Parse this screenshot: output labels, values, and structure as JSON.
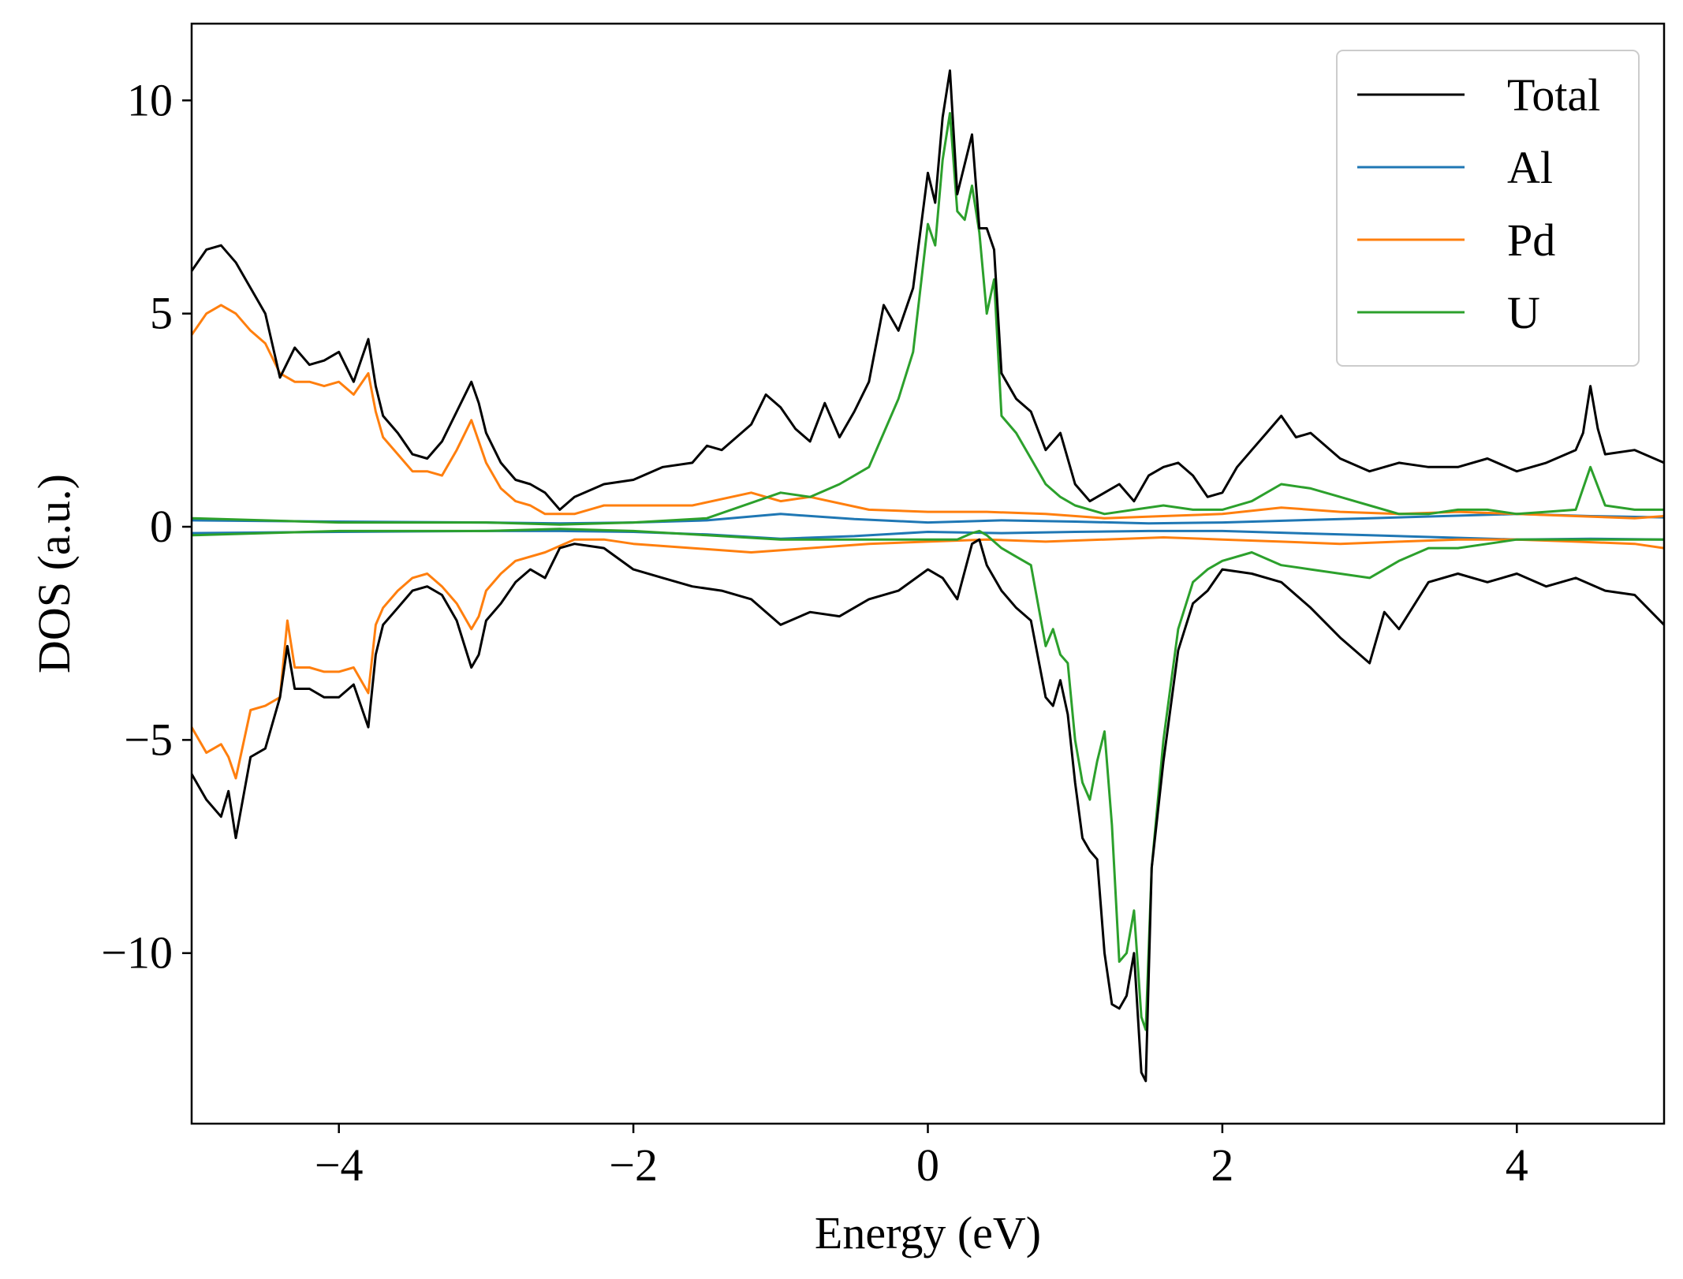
{
  "chart_data": {
    "type": "line",
    "title": "",
    "xlabel": "Energy (eV)",
    "ylabel": "DOS (a.u.)",
    "xlim": [
      -5,
      5
    ],
    "ylim": [
      -14,
      11.8
    ],
    "xticks": [
      -4,
      -2,
      0,
      2,
      4
    ],
    "xtick_labels": [
      "−4",
      "−2",
      "0",
      "2",
      "4"
    ],
    "yticks": [
      10,
      5,
      0,
      -5,
      -10
    ],
    "ytick_labels": [
      "10",
      "5",
      "0",
      "−5",
      "−10"
    ],
    "grid": false,
    "legend_position": "top-right",
    "legend": [
      "Total",
      "Al",
      "Pd",
      "U"
    ],
    "series": [
      {
        "name": "Total",
        "color": "#000000",
        "component": "spin-up",
        "x": [
          -5,
          -4.9,
          -4.8,
          -4.7,
          -4.6,
          -4.5,
          -4.4,
          -4.3,
          -4.2,
          -4.1,
          -4.0,
          -3.9,
          -3.8,
          -3.75,
          -3.7,
          -3.6,
          -3.5,
          -3.4,
          -3.3,
          -3.2,
          -3.1,
          -3.05,
          -3.0,
          -2.9,
          -2.8,
          -2.7,
          -2.6,
          -2.5,
          -2.4,
          -2.2,
          -2.0,
          -1.8,
          -1.6,
          -1.5,
          -1.4,
          -1.2,
          -1.1,
          -1.0,
          -0.9,
          -0.8,
          -0.7,
          -0.6,
          -0.5,
          -0.4,
          -0.3,
          -0.2,
          -0.1,
          0.0,
          0.05,
          0.1,
          0.15,
          0.2,
          0.3,
          0.35,
          0.4,
          0.45,
          0.5,
          0.6,
          0.7,
          0.8,
          0.9,
          1.0,
          1.1,
          1.2,
          1.3,
          1.4,
          1.5,
          1.6,
          1.7,
          1.8,
          1.9,
          2.0,
          2.1,
          2.2,
          2.3,
          2.4,
          2.5,
          2.6,
          2.8,
          3.0,
          3.2,
          3.4,
          3.6,
          3.8,
          4.0,
          4.2,
          4.4,
          4.45,
          4.5,
          4.55,
          4.6,
          4.8,
          5.0
        ],
        "y": [
          6.0,
          6.5,
          6.6,
          6.2,
          5.6,
          5.0,
          3.5,
          4.2,
          3.8,
          3.9,
          4.1,
          3.4,
          4.4,
          3.3,
          2.6,
          2.2,
          1.7,
          1.6,
          2.0,
          2.7,
          3.4,
          2.9,
          2.2,
          1.5,
          1.1,
          1.0,
          0.8,
          0.4,
          0.7,
          1.0,
          1.1,
          1.4,
          1.5,
          1.9,
          1.8,
          2.4,
          3.1,
          2.8,
          2.3,
          2.0,
          2.9,
          2.1,
          2.7,
          3.4,
          5.2,
          4.6,
          5.6,
          8.3,
          7.6,
          9.6,
          10.7,
          7.8,
          9.2,
          7.0,
          7.0,
          6.5,
          3.6,
          3.0,
          2.7,
          1.8,
          2.2,
          1.0,
          0.6,
          0.8,
          1.0,
          0.6,
          1.2,
          1.4,
          1.5,
          1.2,
          0.7,
          0.8,
          1.4,
          1.8,
          2.2,
          2.6,
          2.1,
          2.2,
          1.6,
          1.3,
          1.5,
          1.4,
          1.4,
          1.6,
          1.3,
          1.5,
          1.8,
          2.2,
          3.3,
          2.3,
          1.7,
          1.8,
          1.5
        ]
      },
      {
        "name": "Total",
        "color": "#000000",
        "component": "spin-down",
        "x": [
          -5,
          -4.9,
          -4.8,
          -4.75,
          -4.7,
          -4.6,
          -4.5,
          -4.4,
          -4.35,
          -4.3,
          -4.2,
          -4.1,
          -4.0,
          -3.9,
          -3.8,
          -3.75,
          -3.7,
          -3.6,
          -3.5,
          -3.4,
          -3.3,
          -3.2,
          -3.1,
          -3.05,
          -3.0,
          -2.9,
          -2.8,
          -2.7,
          -2.6,
          -2.5,
          -2.4,
          -2.2,
          -2.0,
          -1.8,
          -1.6,
          -1.4,
          -1.2,
          -1.0,
          -0.8,
          -0.6,
          -0.4,
          -0.2,
          0.0,
          0.1,
          0.2,
          0.3,
          0.35,
          0.4,
          0.5,
          0.6,
          0.7,
          0.8,
          0.85,
          0.9,
          0.95,
          1.0,
          1.05,
          1.1,
          1.15,
          1.2,
          1.25,
          1.3,
          1.35,
          1.4,
          1.45,
          1.48,
          1.52,
          1.6,
          1.7,
          1.8,
          1.9,
          2.0,
          2.2,
          2.4,
          2.6,
          2.8,
          2.9,
          3.0,
          3.1,
          3.2,
          3.4,
          3.6,
          3.8,
          4.0,
          4.2,
          4.4,
          4.6,
          4.8,
          5.0
        ],
        "y": [
          -5.8,
          -6.4,
          -6.8,
          -6.2,
          -7.3,
          -5.4,
          -5.2,
          -4.0,
          -2.8,
          -3.8,
          -3.8,
          -4.0,
          -4.0,
          -3.7,
          -4.7,
          -3.0,
          -2.3,
          -1.9,
          -1.5,
          -1.4,
          -1.6,
          -2.2,
          -3.3,
          -3.0,
          -2.2,
          -1.8,
          -1.3,
          -1.0,
          -1.2,
          -0.5,
          -0.4,
          -0.5,
          -1.0,
          -1.2,
          -1.4,
          -1.5,
          -1.7,
          -2.3,
          -2.0,
          -2.1,
          -1.7,
          -1.5,
          -1.0,
          -1.2,
          -1.7,
          -0.4,
          -0.3,
          -0.9,
          -1.5,
          -1.9,
          -2.2,
          -4.0,
          -4.2,
          -3.6,
          -4.4,
          -6.0,
          -7.3,
          -7.6,
          -7.8,
          -10.0,
          -11.2,
          -11.3,
          -11.0,
          -10.0,
          -12.8,
          -13.0,
          -8.0,
          -5.5,
          -2.9,
          -1.8,
          -1.5,
          -1.0,
          -1.1,
          -1.3,
          -1.9,
          -2.6,
          -2.9,
          -3.2,
          -2.0,
          -2.4,
          -1.3,
          -1.1,
          -1.3,
          -1.1,
          -1.4,
          -1.2,
          -1.5,
          -1.6,
          -2.3
        ]
      },
      {
        "name": "Al",
        "color": "#1f77b4",
        "component": "spin-up",
        "x": [
          -5,
          -4.0,
          -3.0,
          -2.5,
          -2.0,
          -1.5,
          -1.0,
          -0.5,
          0.0,
          0.5,
          1.0,
          1.5,
          2.0,
          2.5,
          3.0,
          3.5,
          4.0,
          4.5,
          5.0
        ],
        "y": [
          0.15,
          0.12,
          0.1,
          0.08,
          0.1,
          0.15,
          0.3,
          0.18,
          0.1,
          0.15,
          0.12,
          0.08,
          0.1,
          0.15,
          0.2,
          0.25,
          0.3,
          0.25,
          0.22
        ]
      },
      {
        "name": "Al",
        "color": "#1f77b4",
        "component": "spin-down",
        "x": [
          -5,
          -4.0,
          -3.0,
          -2.5,
          -2.0,
          -1.5,
          -1.0,
          -0.5,
          0.0,
          0.5,
          1.0,
          1.5,
          2.0,
          2.5,
          3.0,
          3.5,
          4.0,
          4.5,
          5.0
        ],
        "y": [
          -0.15,
          -0.12,
          -0.1,
          -0.1,
          -0.12,
          -0.18,
          -0.28,
          -0.22,
          -0.12,
          -0.15,
          -0.12,
          -0.1,
          -0.1,
          -0.15,
          -0.2,
          -0.25,
          -0.3,
          -0.28,
          -0.3
        ]
      },
      {
        "name": "Pd",
        "color": "#ff7f0e",
        "component": "spin-up",
        "x": [
          -5,
          -4.9,
          -4.8,
          -4.7,
          -4.6,
          -4.5,
          -4.4,
          -4.3,
          -4.2,
          -4.1,
          -4.0,
          -3.9,
          -3.8,
          -3.75,
          -3.7,
          -3.6,
          -3.5,
          -3.4,
          -3.3,
          -3.2,
          -3.1,
          -3.05,
          -3.0,
          -2.9,
          -2.8,
          -2.7,
          -2.6,
          -2.4,
          -2.2,
          -2.0,
          -1.6,
          -1.2,
          -1.0,
          -0.8,
          -0.4,
          0.0,
          0.4,
          0.8,
          1.2,
          1.6,
          2.0,
          2.4,
          2.8,
          3.2,
          3.6,
          4.0,
          4.4,
          4.8,
          5.0
        ],
        "y": [
          4.5,
          5.0,
          5.2,
          5.0,
          4.6,
          4.3,
          3.6,
          3.4,
          3.4,
          3.3,
          3.4,
          3.1,
          3.6,
          2.7,
          2.1,
          1.7,
          1.3,
          1.3,
          1.2,
          1.8,
          2.5,
          2.0,
          1.5,
          0.9,
          0.6,
          0.5,
          0.3,
          0.3,
          0.5,
          0.5,
          0.5,
          0.8,
          0.6,
          0.7,
          0.4,
          0.35,
          0.35,
          0.3,
          0.2,
          0.25,
          0.3,
          0.45,
          0.35,
          0.3,
          0.35,
          0.3,
          0.25,
          0.2,
          0.25
        ]
      },
      {
        "name": "Pd",
        "color": "#ff7f0e",
        "component": "spin-down",
        "x": [
          -5,
          -4.9,
          -4.8,
          -4.75,
          -4.7,
          -4.6,
          -4.5,
          -4.4,
          -4.35,
          -4.3,
          -4.2,
          -4.1,
          -4.0,
          -3.9,
          -3.8,
          -3.75,
          -3.7,
          -3.6,
          -3.5,
          -3.4,
          -3.3,
          -3.2,
          -3.1,
          -3.05,
          -3.0,
          -2.9,
          -2.8,
          -2.6,
          -2.4,
          -2.2,
          -2.0,
          -1.6,
          -1.2,
          -0.8,
          -0.4,
          0.0,
          0.4,
          0.8,
          1.2,
          1.6,
          2.0,
          2.4,
          2.8,
          3.2,
          3.6,
          4.0,
          4.4,
          4.8,
          5.0
        ],
        "y": [
          -4.7,
          -5.3,
          -5.1,
          -5.4,
          -5.9,
          -4.3,
          -4.2,
          -4.0,
          -2.2,
          -3.3,
          -3.3,
          -3.4,
          -3.4,
          -3.3,
          -3.9,
          -2.3,
          -1.9,
          -1.5,
          -1.2,
          -1.1,
          -1.4,
          -1.8,
          -2.4,
          -2.1,
          -1.5,
          -1.1,
          -0.8,
          -0.6,
          -0.3,
          -0.3,
          -0.4,
          -0.5,
          -0.6,
          -0.5,
          -0.4,
          -0.35,
          -0.3,
          -0.35,
          -0.3,
          -0.25,
          -0.3,
          -0.35,
          -0.4,
          -0.35,
          -0.3,
          -0.3,
          -0.35,
          -0.4,
          -0.5
        ]
      },
      {
        "name": "U",
        "color": "#2ca02c",
        "component": "spin-up",
        "x": [
          -5,
          -4.0,
          -3.0,
          -2.5,
          -2.0,
          -1.5,
          -1.0,
          -0.8,
          -0.6,
          -0.4,
          -0.3,
          -0.2,
          -0.1,
          0.0,
          0.05,
          0.1,
          0.15,
          0.2,
          0.25,
          0.3,
          0.35,
          0.4,
          0.45,
          0.5,
          0.6,
          0.7,
          0.8,
          0.9,
          1.0,
          1.2,
          1.4,
          1.6,
          1.8,
          2.0,
          2.2,
          2.4,
          2.6,
          2.8,
          3.0,
          3.2,
          3.4,
          3.6,
          3.8,
          4.0,
          4.2,
          4.4,
          4.5,
          4.6,
          4.8,
          5.0
        ],
        "y": [
          0.2,
          0.1,
          0.1,
          0.05,
          0.1,
          0.2,
          0.8,
          0.7,
          1.0,
          1.4,
          2.2,
          3.0,
          4.1,
          7.1,
          6.6,
          8.6,
          9.7,
          7.4,
          7.2,
          8.0,
          6.9,
          5.0,
          5.8,
          2.6,
          2.2,
          1.6,
          1.0,
          0.7,
          0.5,
          0.3,
          0.4,
          0.5,
          0.4,
          0.4,
          0.6,
          1.0,
          0.9,
          0.7,
          0.5,
          0.3,
          0.3,
          0.4,
          0.4,
          0.3,
          0.35,
          0.4,
          1.4,
          0.5,
          0.4,
          0.4
        ]
      },
      {
        "name": "U",
        "color": "#2ca02c",
        "component": "spin-down",
        "x": [
          -5,
          -4.0,
          -3.0,
          -2.5,
          -2.0,
          -1.5,
          -1.0,
          -0.5,
          0.0,
          0.2,
          0.3,
          0.35,
          0.4,
          0.5,
          0.6,
          0.7,
          0.8,
          0.85,
          0.9,
          0.95,
          1.0,
          1.05,
          1.1,
          1.15,
          1.2,
          1.25,
          1.3,
          1.35,
          1.4,
          1.45,
          1.48,
          1.52,
          1.6,
          1.7,
          1.8,
          1.9,
          2.0,
          2.2,
          2.4,
          2.6,
          2.8,
          3.0,
          3.2,
          3.4,
          3.6,
          3.8,
          4.0,
          4.2,
          4.4,
          4.6,
          4.8,
          5.0
        ],
        "y": [
          -0.2,
          -0.1,
          -0.1,
          -0.05,
          -0.1,
          -0.2,
          -0.3,
          -0.3,
          -0.3,
          -0.3,
          -0.15,
          -0.1,
          -0.2,
          -0.5,
          -0.7,
          -0.9,
          -2.8,
          -2.4,
          -3.0,
          -3.2,
          -5.0,
          -6.0,
          -6.4,
          -5.5,
          -4.8,
          -7.0,
          -10.2,
          -10.0,
          -9.0,
          -11.5,
          -11.8,
          -8.0,
          -5.0,
          -2.4,
          -1.3,
          -1.0,
          -0.8,
          -0.6,
          -0.9,
          -1.0,
          -1.1,
          -1.2,
          -0.8,
          -0.5,
          -0.5,
          -0.4,
          -0.3,
          -0.3,
          -0.3,
          -0.3,
          -0.3,
          -0.3
        ]
      }
    ]
  }
}
